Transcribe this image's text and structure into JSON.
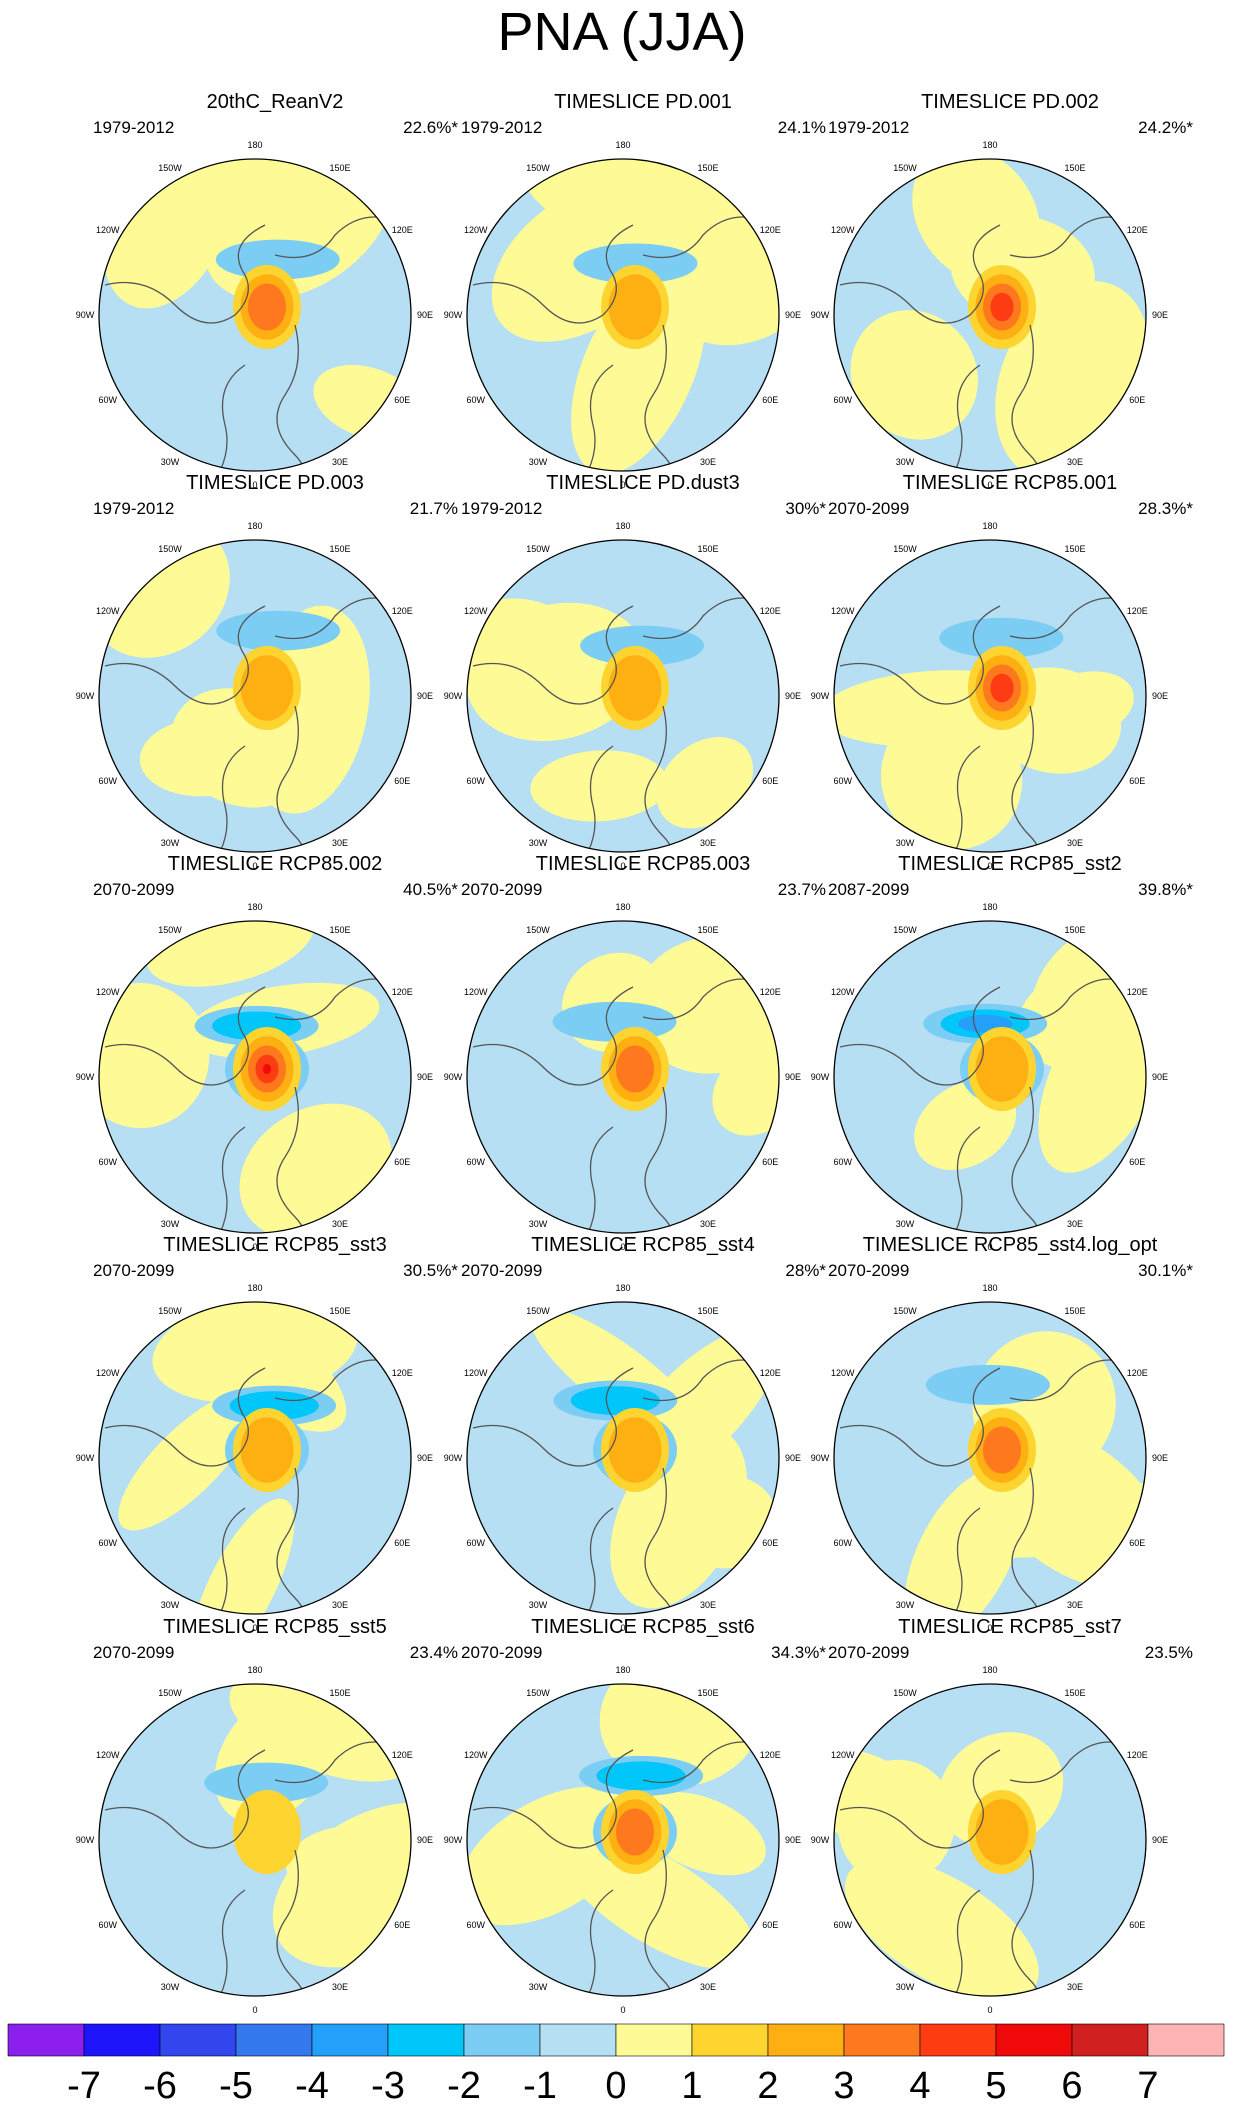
{
  "title": "PNA (JJA)",
  "lon_labels": [
    "180",
    "150E",
    "120E",
    "90E",
    "60E",
    "30E",
    "0",
    "30W",
    "60W",
    "90W",
    "120W",
    "150W"
  ],
  "panels": [
    {
      "title": "20thC_ReanV2",
      "years": "1979-2012",
      "percent": "22.6%*",
      "min": -2,
      "max": 3
    },
    {
      "title": "TIMESLICE PD.001",
      "years": "1979-2012",
      "percent": "24.1%",
      "min": -2,
      "max": 2
    },
    {
      "title": "TIMESLICE PD.002",
      "years": "1979-2012",
      "percent": "24.2%*",
      "min": -1,
      "max": 4
    },
    {
      "title": "TIMESLICE PD.003",
      "years": "1979-2012",
      "percent": "21.7%",
      "min": -2,
      "max": 2
    },
    {
      "title": "TIMESLICE PD.dust3",
      "years": "1979-2012",
      "percent": "30%*",
      "min": -2,
      "max": 2
    },
    {
      "title": "TIMESLICE RCP85.001",
      "years": "2070-2099",
      "percent": "28.3%*",
      "min": -2,
      "max": 4
    },
    {
      "title": "TIMESLICE RCP85.002",
      "years": "2070-2099",
      "percent": "40.5%*",
      "min": -3,
      "max": 5
    },
    {
      "title": "TIMESLICE RCP85.003",
      "years": "2070-2099",
      "percent": "23.7%",
      "min": -2,
      "max": 3
    },
    {
      "title": "TIMESLICE RCP85_sst2",
      "years": "2087-2099",
      "percent": "39.8%*",
      "min": -4,
      "max": 2
    },
    {
      "title": "TIMESLICE RCP85_sst3",
      "years": "2070-2099",
      "percent": "30.5%*",
      "min": -3,
      "max": 2
    },
    {
      "title": "TIMESLICE RCP85_sst4",
      "years": "2070-2099",
      "percent": "28%*",
      "min": -3,
      "max": 2
    },
    {
      "title": "TIMESLICE RCP85_sst4.log_opt",
      "years": "2070-2099",
      "percent": "30.1%*",
      "min": -2,
      "max": 3
    },
    {
      "title": "TIMESLICE RCP85_sst5",
      "years": "2070-2099",
      "percent": "23.4%",
      "min": -2,
      "max": 1
    },
    {
      "title": "TIMESLICE RCP85_sst6",
      "years": "2070-2099",
      "percent": "34.3%*",
      "min": -3,
      "max": 3
    },
    {
      "title": "TIMESLICE RCP85_sst7",
      "years": "2070-2099",
      "percent": "23.5%",
      "min": -1,
      "max": 2
    }
  ],
  "colorbar": {
    "labels": [
      "-7",
      "-6",
      "-5",
      "-4",
      "-3",
      "-2",
      "-1",
      "0",
      "1",
      "2",
      "3",
      "4",
      "5",
      "6",
      "7"
    ],
    "colors": [
      "#8C1EEE",
      "#1E14FA",
      "#3246EE",
      "#3478EE",
      "#24A0FA",
      "#00C6FA",
      "#7BCDF4",
      "#B6DFF4",
      "#FEFA96",
      "#FED530",
      "#FEAF12",
      "#FE781E",
      "#FE3C14",
      "#F00A0A",
      "#D02020",
      "#FFB4B4"
    ]
  }
}
